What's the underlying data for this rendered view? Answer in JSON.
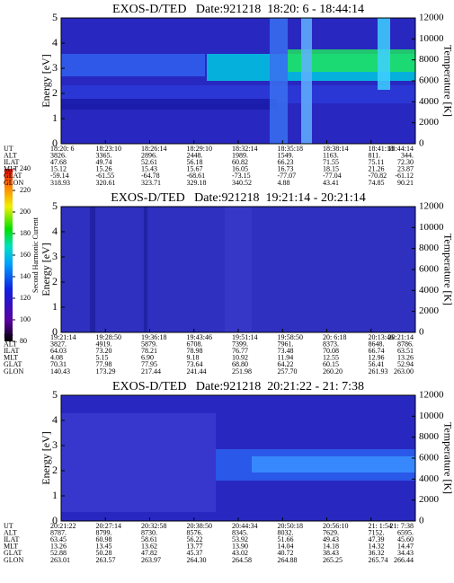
{
  "chart_data": [
    {
      "type": "spectrogram",
      "title": "EXOS-D/TED   Date:921218  18:20: 6 - 18:44:14",
      "ylabel": "Energy [eV]",
      "ylim": [
        0,
        5
      ],
      "yticks": [
        0,
        1,
        2,
        3,
        4,
        5
      ],
      "y2label": "Temperature [K]",
      "y2lim": [
        0,
        12000
      ],
      "y2ticks": [
        0,
        2000,
        4000,
        6000,
        8000,
        10000,
        12000
      ],
      "ephemeris": {
        "labels": [
          "UT",
          "ALT",
          "ILAT",
          "MLT",
          "GLAT",
          "GLON"
        ],
        "rows": [
          [
            "18:20: 6",
            "18:23:10",
            "18:26:14",
            "18:29:10",
            "18:32:14",
            "18:35:18",
            "18:38:14",
            "18:41:18",
            "18:44:14"
          ],
          [
            "3826.",
            "3365.",
            "2896.",
            "2448.",
            "1989.",
            "1549.",
            "1163.",
            "811.",
            "344."
          ],
          [
            "47.68",
            "49.74",
            "52.61",
            "56.18",
            "60.82",
            "66.23",
            "71.55",
            "75.11",
            "72.30"
          ],
          [
            "15.12",
            "15.26",
            "15.43",
            "15.67",
            "16.05",
            "16.73",
            "18.15",
            "21.26",
            "23.87"
          ],
          [
            "-59.14",
            "-61.55",
            "-64.78",
            "-68.61",
            "-73.15",
            "-77.07",
            "-77.04",
            "-70.82",
            "-61.12"
          ],
          [
            "318.93",
            "320.61",
            "323.71",
            "329.18",
            "340.52",
            "4.88",
            "43.41",
            "74.85",
            "90.21"
          ]
        ]
      }
    },
    {
      "type": "spectrogram",
      "title": "EXOS-D/TED   Date:921218  19:21:14 - 20:21:14",
      "ylabel": "Energy [eV]",
      "ylim": [
        0,
        5
      ],
      "yticks": [
        0,
        1,
        2,
        3,
        4,
        5
      ],
      "y2label": "Temperature [K]",
      "y2lim": [
        0,
        12000
      ],
      "y2ticks": [
        0,
        2000,
        4000,
        6000,
        8000,
        10000,
        12000
      ],
      "ephemeris": {
        "labels": [
          "UT",
          "ALT",
          "ILAT",
          "MLT",
          "GLAT",
          "GLON"
        ],
        "rows": [
          [
            "19:21:14",
            "19:28:50",
            "19:36:18",
            "19:43:46",
            "19:51:14",
            "19:58:50",
            "20: 6:18",
            "20:13:46",
            "20:21:14"
          ],
          [
            "3827.",
            "4919.",
            "5879.",
            "6708.",
            "7399.",
            "7961.",
            "8373.",
            "8648.",
            "8786."
          ],
          [
            "64.03",
            "73.20",
            "78.21",
            "78.98",
            "76.77",
            "73.48",
            "70.08",
            "66.74",
            "63.51"
          ],
          [
            "4.08",
            "5.15",
            "6.90",
            "9.18",
            "10.92",
            "11.94",
            "12.55",
            "12.96",
            "13.26"
          ],
          [
            "70.31",
            "77.98",
            "77.95",
            "73.64",
            "68.80",
            "64.22",
            "60.15",
            "56.41",
            "52.94"
          ],
          [
            "140.43",
            "173.29",
            "217.44",
            "241.44",
            "251.98",
            "257.70",
            "260.20",
            "261.93",
            "263.00"
          ]
        ]
      }
    },
    {
      "type": "spectrogram",
      "title": "EXOS-D/TED   Date:921218  20:21:22 - 21: 7:38",
      "ylabel": "Energy [eV]",
      "ylim": [
        0,
        5
      ],
      "yticks": [
        0,
        1,
        2,
        3,
        4,
        5
      ],
      "y2label": "Temperature [K]",
      "y2lim": [
        0,
        12000
      ],
      "y2ticks": [
        0,
        2000,
        4000,
        6000,
        8000,
        10000,
        12000
      ],
      "ephemeris": {
        "labels": [
          "UT",
          "ALT",
          "ILAT",
          "MLT",
          "GLAT",
          "GLON"
        ],
        "rows": [
          [
            "20:21:22",
            "20:27:14",
            "20:32:58",
            "20:38:50",
            "20:44:34",
            "20:50:18",
            "20:56:10",
            "21: 1:54",
            "21: 7:38"
          ],
          [
            "8787.",
            "8799.",
            "8730.",
            "8576.",
            "8345.",
            "8032.",
            "7629.",
            "7152.",
            "6595."
          ],
          [
            "63.45",
            "60.98",
            "58.61",
            "56.22",
            "53.92",
            "51.66",
            "49.43",
            "47.39",
            "45.60"
          ],
          [
            "13.26",
            "13.45",
            "13.62",
            "13.77",
            "13.90",
            "14.04",
            "14.18",
            "14.32",
            "14.47"
          ],
          [
            "52.88",
            "50.28",
            "47.82",
            "45.37",
            "43.02",
            "40.72",
            "38.43",
            "36.32",
            "34.43"
          ],
          [
            "263.01",
            "263.57",
            "263.97",
            "264.30",
            "264.58",
            "264.88",
            "265.25",
            "265.74",
            "266.44"
          ]
        ]
      }
    }
  ],
  "colorbar": {
    "label": "Second Harmonic Current",
    "lim": [
      80,
      240
    ],
    "ticks": [
      80,
      100,
      120,
      140,
      160,
      180,
      200,
      220,
      240
    ]
  }
}
